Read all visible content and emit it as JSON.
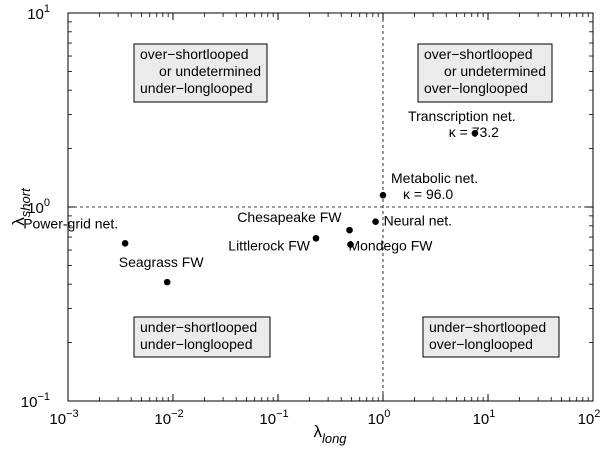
{
  "chart_data": {
    "type": "scatter",
    "xscale": "log",
    "yscale": "log",
    "xlim": [
      0.001,
      100
    ],
    "ylim": [
      0.1,
      10
    ],
    "xlabel": {
      "base": "λ",
      "sub": "long"
    },
    "ylabel": {
      "base": "λ",
      "sub": "short"
    },
    "x_ticks": [
      {
        "value": 0.001,
        "mant": "10",
        "exp": "−3"
      },
      {
        "value": 0.01,
        "mant": "10",
        "exp": "−2"
      },
      {
        "value": 0.1,
        "mant": "10",
        "exp": "−1"
      },
      {
        "value": 1,
        "mant": "10",
        "exp": "0"
      },
      {
        "value": 10,
        "mant": "10",
        "exp": "1"
      },
      {
        "value": 100,
        "mant": "10",
        "exp": "2"
      }
    ],
    "y_ticks": [
      {
        "value": 0.1,
        "mant": "10",
        "exp": "−1"
      },
      {
        "value": 1,
        "mant": "10",
        "exp": "0"
      },
      {
        "value": 10,
        "mant": "10",
        "exp": "1"
      }
    ],
    "reference_lines": {
      "x": 1,
      "y": 1,
      "style": "dashed"
    },
    "grid": false,
    "points": [
      {
        "name": "Power-grid net.",
        "x": 0.0035,
        "y": 0.65,
        "label_lines": [
          "Power-grid net."
        ],
        "anchor": "end"
      },
      {
        "name": "Seagrass FW",
        "x": 0.0088,
        "y": 0.41,
        "label_lines": [
          "Seagrass FW"
        ],
        "anchor": "middle"
      },
      {
        "name": "Littlerock FW",
        "x": 0.23,
        "y": 0.69,
        "label_lines": [
          "Littlerock FW"
        ],
        "anchor": "end"
      },
      {
        "name": "Chesapeake FW",
        "x": 0.48,
        "y": 0.76,
        "label_lines": [
          "Chesapeake FW"
        ],
        "anchor": "end"
      },
      {
        "name": "Mondego FW",
        "x": 0.49,
        "y": 0.64,
        "label_lines": [
          "Mondego FW"
        ],
        "anchor": "start"
      },
      {
        "name": "Neural net.",
        "x": 0.85,
        "y": 0.84,
        "label_lines": [
          "Neural net."
        ],
        "anchor": "start"
      },
      {
        "name": "Metabolic net.",
        "x": 1.0,
        "y": 1.15,
        "label_lines": [
          "Metabolic net.",
          "κ = 96.0"
        ],
        "anchor": "start"
      },
      {
        "name": "Transcription net.",
        "x": 7.5,
        "y": 2.4,
        "label_lines": [
          "Transcription net.",
          "κ = 73.2"
        ],
        "anchor": "middle"
      }
    ],
    "annotations": [
      {
        "quadrant": "top-left",
        "lines": [
          "over−shortlooped",
          "or undetermined",
          "under−longlooped"
        ]
      },
      {
        "quadrant": "top-right",
        "lines": [
          "over−shortlooped",
          "or undetermined",
          "over−longlooped"
        ]
      },
      {
        "quadrant": "bottom-left",
        "lines": [
          "under−shortlooped",
          "under−longlooped"
        ]
      },
      {
        "quadrant": "bottom-right",
        "lines": [
          "under−shortlooped",
          "over−longlooped"
        ]
      }
    ]
  }
}
